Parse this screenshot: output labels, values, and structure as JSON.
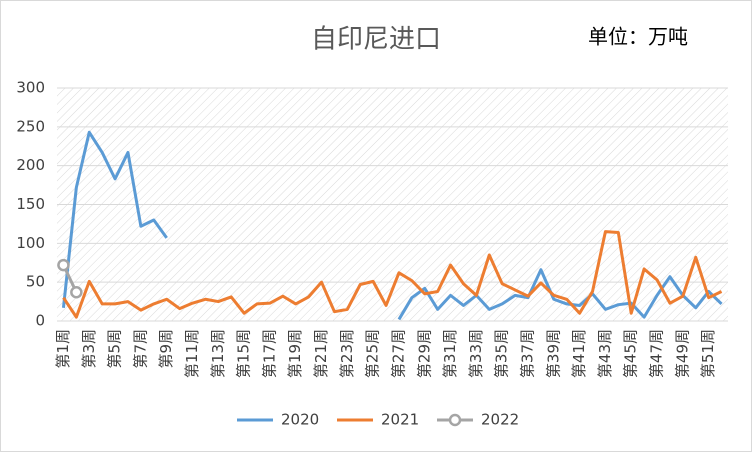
{
  "chart_data": {
    "type": "line",
    "title": "自印尼进口",
    "annotation": "单位：万吨",
    "categories": [
      "第1周",
      null,
      "第3周",
      null,
      "第5周",
      null,
      "第7周",
      null,
      "第9周",
      null,
      "第11周",
      null,
      "第13周",
      null,
      "第15周",
      null,
      "第17周",
      null,
      "第19周",
      null,
      "第21周",
      null,
      "第23周",
      null,
      "第25周",
      null,
      "第27周",
      null,
      "第29周",
      null,
      "第31周",
      null,
      "第33周",
      null,
      "第35周",
      null,
      "第37周",
      null,
      "第39周",
      null,
      "第41周",
      null,
      "第43周",
      null,
      "第45周",
      null,
      "第47周",
      null,
      "第49周",
      null,
      "第51周",
      null
    ],
    "series": [
      {
        "name": "2020",
        "color": "#5b9bd5",
        "values": [
          17,
          172,
          243,
          217,
          183,
          217,
          122,
          130,
          107,
          null,
          null,
          null,
          null,
          null,
          null,
          null,
          null,
          null,
          null,
          null,
          null,
          null,
          null,
          null,
          null,
          null,
          2,
          30,
          42,
          15,
          33,
          20,
          33,
          15,
          22,
          33,
          30,
          66,
          28,
          22,
          20,
          35,
          15,
          21,
          23,
          5,
          33,
          57,
          33,
          17,
          38,
          22
        ]
      },
      {
        "name": "2021",
        "color": "#ed7d31",
        "values": [
          30,
          5,
          51,
          22,
          22,
          25,
          14,
          22,
          28,
          16,
          23,
          28,
          25,
          31,
          10,
          22,
          23,
          32,
          22,
          31,
          50,
          12,
          15,
          47,
          51,
          20,
          62,
          52,
          35,
          38,
          72,
          48,
          33,
          85,
          48,
          40,
          32,
          49,
          33,
          28,
          10,
          38,
          115,
          114,
          10,
          67,
          53,
          23,
          32,
          82,
          30,
          38
        ]
      },
      {
        "name": "2022",
        "color": "#a5a5a5",
        "marker": true,
        "values": [
          72,
          37,
          null,
          null,
          null,
          null,
          null,
          null,
          null,
          null,
          null,
          null,
          null,
          null,
          null,
          null,
          null,
          null,
          null,
          null,
          null,
          null,
          null,
          null,
          null,
          null,
          null,
          null,
          null,
          null,
          null,
          null,
          null,
          null,
          null,
          null,
          null,
          null,
          null,
          null,
          null,
          null,
          null,
          null,
          null,
          null,
          null,
          null,
          null,
          null,
          null,
          null
        ]
      }
    ],
    "ylim": [
      0,
      300
    ],
    "yticks": [
      0,
      50,
      100,
      150,
      200,
      250,
      300
    ],
    "grid": true,
    "legend": "bottom"
  }
}
